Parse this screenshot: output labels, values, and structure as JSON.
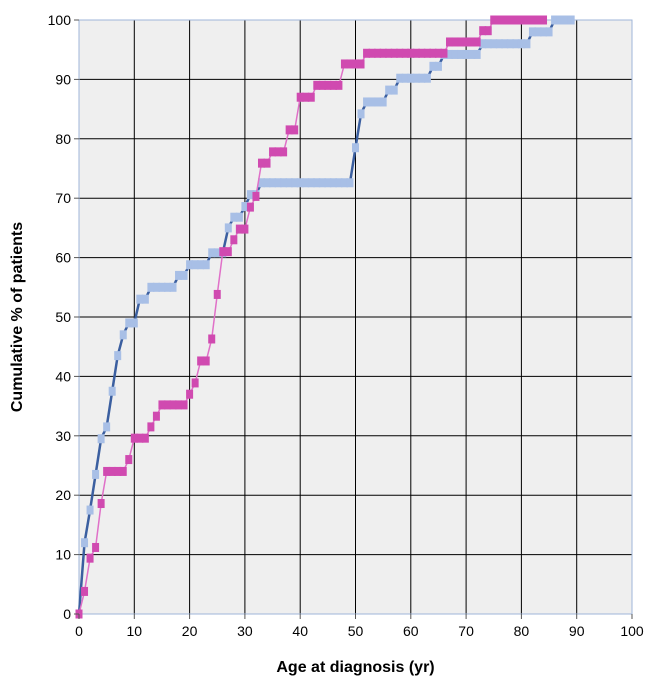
{
  "chart_data": {
    "type": "line",
    "title": "",
    "xlabel": "Age at diagnosis (yr)",
    "ylabel": "Cumulative % of patients",
    "xlim": [
      0,
      100
    ],
    "ylim": [
      0,
      100
    ],
    "xticks": [
      0,
      10,
      20,
      30,
      40,
      50,
      60,
      70,
      80,
      90,
      100
    ],
    "yticks": [
      0,
      10,
      20,
      30,
      40,
      50,
      60,
      70,
      80,
      90,
      100
    ],
    "grid": true,
    "legend": "none",
    "series": [
      {
        "color": "#a8bfe6",
        "line_color": "#3b5fa0",
        "x": [
          0,
          1,
          2,
          3,
          4,
          5,
          6,
          7,
          8,
          9,
          10,
          11,
          12,
          13,
          14,
          15,
          16,
          17,
          18,
          19,
          20,
          21,
          22,
          23,
          24,
          25,
          26,
          27,
          28,
          29,
          30,
          31,
          32,
          33,
          34,
          35,
          36,
          37,
          38,
          39,
          40,
          41,
          42,
          43,
          44,
          45,
          46,
          47,
          48,
          49,
          50,
          51,
          52,
          53,
          54,
          55,
          56,
          57,
          58,
          59,
          60,
          61,
          62,
          63,
          64,
          65,
          66,
          67,
          68,
          69,
          70,
          71,
          72,
          73,
          74,
          75,
          76,
          77,
          78,
          79,
          80,
          81,
          82,
          83,
          84,
          85,
          86,
          87,
          88,
          89
        ],
        "values": [
          0,
          12,
          17.5,
          23.5,
          29.5,
          31.5,
          37.5,
          43.5,
          47,
          49,
          49,
          53,
          53,
          55,
          55,
          55,
          55,
          55,
          57,
          57,
          58.8,
          58.8,
          58.8,
          58.8,
          60.8,
          60.8,
          60.8,
          65,
          66.8,
          66.8,
          68.6,
          70.6,
          70.6,
          72.6,
          72.6,
          72.6,
          72.6,
          72.6,
          72.6,
          72.6,
          72.6,
          72.6,
          72.6,
          72.6,
          72.6,
          72.6,
          72.6,
          72.6,
          72.6,
          72.6,
          78.5,
          84.2,
          86.2,
          86.2,
          86.2,
          86.2,
          88.2,
          88.2,
          90.2,
          90.2,
          90.2,
          90.2,
          90.2,
          90.2,
          92.2,
          92.2,
          94.2,
          94.2,
          94.2,
          94.2,
          94.2,
          94.2,
          94.2,
          96,
          96,
          96,
          96,
          96,
          96,
          96,
          96,
          96,
          98,
          98,
          98,
          98,
          100,
          100,
          100,
          100
        ]
      },
      {
        "color": "#d04ab0",
        "line_color": "#e070c8",
        "x": [
          0,
          1,
          2,
          3,
          4,
          5,
          6,
          7,
          8,
          9,
          10,
          11,
          12,
          13,
          14,
          15,
          16,
          17,
          18,
          19,
          20,
          21,
          22,
          23,
          24,
          25,
          26,
          27,
          28,
          29,
          30,
          31,
          32,
          33,
          34,
          35,
          36,
          37,
          38,
          39,
          40,
          41,
          42,
          43,
          44,
          45,
          46,
          47,
          48,
          49,
          50,
          51,
          52,
          53,
          54,
          55,
          56,
          57,
          58,
          59,
          60,
          61,
          62,
          63,
          64,
          65,
          66,
          67,
          68,
          69,
          70,
          71,
          72,
          73,
          74,
          75,
          76,
          77,
          78,
          79,
          80,
          81,
          82,
          83,
          84
        ],
        "values": [
          0,
          3.8,
          9.4,
          11.2,
          18.6,
          24,
          24,
          24,
          24,
          26,
          29.6,
          29.6,
          29.6,
          31.5,
          33.3,
          35.2,
          35.2,
          35.2,
          35.2,
          35.2,
          37,
          38.9,
          42.6,
          42.6,
          46.3,
          53.8,
          61,
          61,
          63,
          64.8,
          64.8,
          68.5,
          70.3,
          75.9,
          75.9,
          77.8,
          77.8,
          77.8,
          81.5,
          81.5,
          87,
          87,
          87,
          89,
          89,
          89,
          89,
          89,
          92.6,
          92.6,
          92.6,
          92.6,
          94.4,
          94.4,
          94.4,
          94.4,
          94.4,
          94.4,
          94.4,
          94.4,
          94.4,
          94.4,
          94.4,
          94.4,
          94.4,
          94.4,
          94.4,
          96.3,
          96.3,
          96.3,
          96.3,
          96.3,
          96.3,
          98.2,
          98.2,
          100,
          100,
          100,
          100,
          100,
          100,
          100,
          100,
          100,
          100
        ]
      }
    ]
  }
}
